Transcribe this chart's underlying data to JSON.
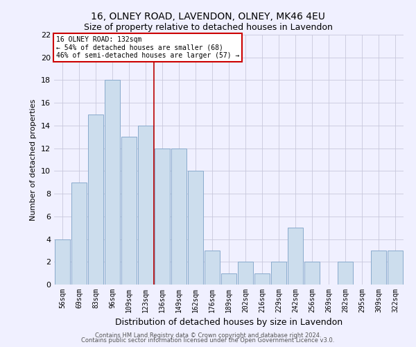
{
  "title1": "16, OLNEY ROAD, LAVENDON, OLNEY, MK46 4EU",
  "title2": "Size of property relative to detached houses in Lavendon",
  "xlabel": "Distribution of detached houses by size in Lavendon",
  "ylabel": "Number of detached properties",
  "footer1": "Contains HM Land Registry data © Crown copyright and database right 2024.",
  "footer2": "Contains public sector information licensed under the Open Government Licence v3.0.",
  "categories": [
    "56sqm",
    "69sqm",
    "83sqm",
    "96sqm",
    "109sqm",
    "123sqm",
    "136sqm",
    "149sqm",
    "162sqm",
    "176sqm",
    "189sqm",
    "202sqm",
    "216sqm",
    "229sqm",
    "242sqm",
    "256sqm",
    "269sqm",
    "282sqm",
    "295sqm",
    "309sqm",
    "322sqm"
  ],
  "values": [
    4,
    9,
    15,
    18,
    13,
    14,
    12,
    12,
    10,
    3,
    1,
    2,
    1,
    2,
    5,
    2,
    0,
    2,
    0,
    3,
    3
  ],
  "bar_color": "#ccdded",
  "bar_edge_color": "#88aacc",
  "background_color": "#f0f0ff",
  "grid_color": "#c8c8dc",
  "ylim": [
    0,
    22
  ],
  "yticks": [
    0,
    2,
    4,
    6,
    8,
    10,
    12,
    14,
    16,
    18,
    20,
    22
  ],
  "red_line_x": 5.5,
  "annotation_title": "16 OLNEY ROAD: 132sqm",
  "annotation_line1": "← 54% of detached houses are smaller (68)",
  "annotation_line2": "46% of semi-detached houses are larger (57) →",
  "annotation_box_color": "#ffffff",
  "annotation_box_edge": "#cc0000",
  "red_line_color": "#bb0000",
  "title1_fontsize": 10,
  "title2_fontsize": 9,
  "xlabel_fontsize": 9,
  "ylabel_fontsize": 8,
  "annotation_fontsize": 7,
  "xtick_fontsize": 7,
  "ytick_fontsize": 8,
  "footer_fontsize": 6
}
